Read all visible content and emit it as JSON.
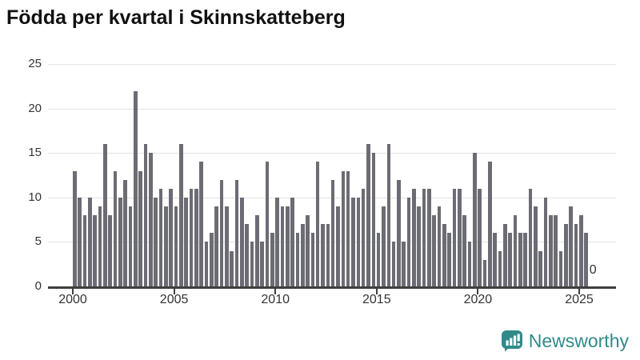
{
  "title": "Födda per kvartal i Skinnskatteberg",
  "footer": {
    "brand": "Newsworthy"
  },
  "colors": {
    "bar": "#6c6c74",
    "accent_teal": "#318a8a",
    "axis": "#3f3f3f",
    "grid": "#e3e3e3"
  },
  "chart_data": {
    "type": "bar",
    "title": "Födda per kvartal i Skinnskatteberg",
    "xlabel": "",
    "ylabel": "",
    "x_start_year": 2000,
    "periods_per_year": 4,
    "ylim": [
      0,
      25
    ],
    "yticks": [
      0,
      5,
      10,
      15,
      20,
      25
    ],
    "xticks": [
      2000,
      2005,
      2010,
      2015,
      2020,
      2025
    ],
    "grid": "horizontal",
    "legend": "none",
    "final_value_label": "0",
    "values": [
      13,
      10,
      8,
      10,
      8,
      9,
      16,
      8,
      13,
      10,
      12,
      9,
      22,
      13,
      16,
      15,
      10,
      11,
      9,
      11,
      9,
      16,
      10,
      11,
      11,
      14,
      5,
      6,
      9,
      12,
      9,
      4,
      12,
      10,
      7,
      5,
      8,
      5,
      14,
      6,
      10,
      9,
      9,
      10,
      6,
      7,
      8,
      6,
      14,
      7,
      7,
      12,
      9,
      13,
      13,
      10,
      10,
      11,
      16,
      15,
      6,
      9,
      16,
      5,
      12,
      5,
      10,
      11,
      9,
      11,
      11,
      8,
      9,
      7,
      6,
      11,
      11,
      8,
      5,
      15,
      11,
      3,
      14,
      6,
      4,
      7,
      6,
      8,
      6,
      6,
      11,
      9,
      4,
      10,
      8,
      8,
      4,
      7,
      9,
      7,
      8,
      6,
      0
    ]
  }
}
